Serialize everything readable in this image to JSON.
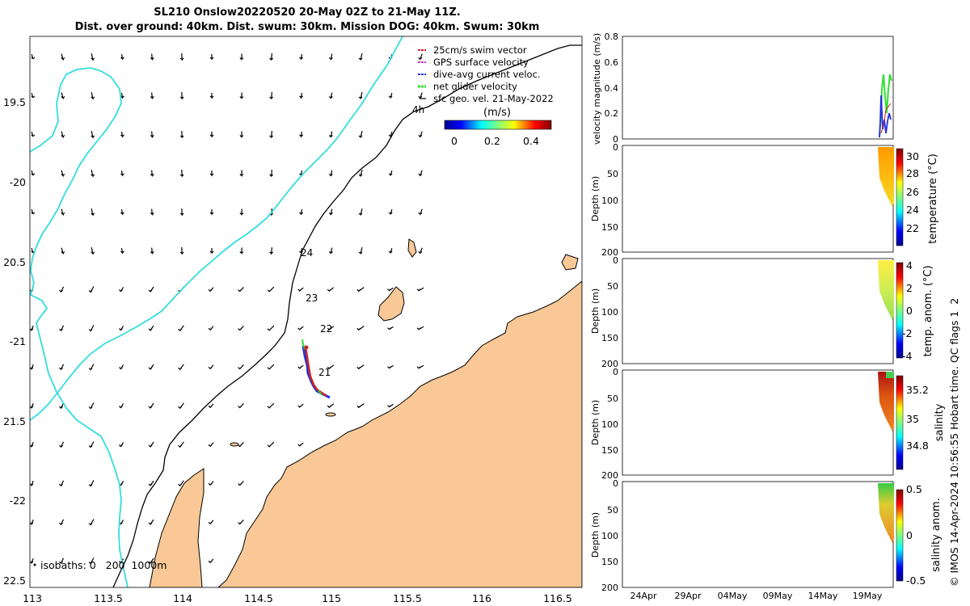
{
  "title": {
    "line1": "SL210 Onslow20220520 20-May 02Z to 21-May 11Z.",
    "line2": "Dist. over ground: 40km. Dist. swum: 30km. Mission DOG: 40km. Swum: 30km"
  },
  "map": {
    "lon_ticks": [
      "113",
      "113.5",
      "114",
      "114.5",
      "115",
      "115.5",
      "116",
      "116.5"
    ],
    "lat_ticks": [
      "19.5",
      "-20",
      "20.5",
      "-21",
      "21.5",
      "-22",
      "22.5"
    ],
    "track_labels": [
      "4h",
      "24",
      "23",
      "22",
      "21"
    ],
    "isobaths_label": "isobaths: 0   200  1000m",
    "legend": [
      {
        "label": "25cm/s swim vector",
        "color": "#cc2222"
      },
      {
        "label": "GPS surface velocity",
        "color": "#cc33cc"
      },
      {
        "label": "dive-avg current veloc.",
        "color": "#2233dd"
      },
      {
        "label": "net glider velocity",
        "color": "#33dd33"
      },
      {
        "label": "sfc geo. vel. 21-May-2022",
        "color": "#000000"
      }
    ],
    "colorbar": {
      "label": "(m/s)",
      "ticks": [
        "0",
        "0.2",
        "0.4"
      ]
    },
    "colors": {
      "land": "#f9c896",
      "isobath_200": "#33dddd",
      "isobath_1000": "#000000"
    }
  },
  "panels": {
    "velocity": {
      "ylabel": "velocity magnitude (m/s)",
      "yticks": [
        "0.8",
        "0.6",
        "0.4",
        "0.2",
        "0"
      ]
    },
    "temperature": {
      "ylabel": "Depth (m)",
      "yticks": [
        "0",
        "50",
        "100",
        "150",
        "200"
      ],
      "cbar_label": "temperature (°C)",
      "cbar_ticks": [
        "30",
        "28",
        "26",
        "24",
        "22"
      ]
    },
    "temp_anom": {
      "ylabel": "Depth (m)",
      "yticks": [
        "0",
        "50",
        "100",
        "150",
        "200"
      ],
      "cbar_label": "temp. anom. (°C)",
      "cbar_ticks": [
        "4",
        "2",
        "0",
        "-2",
        "-4"
      ]
    },
    "salinity": {
      "ylabel": "Depth (m)",
      "yticks": [
        "0",
        "50",
        "100",
        "150",
        "200"
      ],
      "cbar_label": "salinity",
      "cbar_ticks": [
        "35.2",
        "35",
        "34.8"
      ]
    },
    "sal_anom": {
      "ylabel": "Depth (m)",
      "yticks": [
        "0",
        "50",
        "100",
        "150",
        "200"
      ],
      "cbar_label": "salinity anom.",
      "cbar_ticks": [
        "0.5",
        "0",
        "-0.5"
      ]
    },
    "dates": [
      "24Apr",
      "29Apr",
      "04May",
      "09May",
      "14May",
      "19May"
    ],
    "credit": "© IMOS 14-Apr-2024 10:56:55 Hobart time. QC flags 1  2"
  }
}
